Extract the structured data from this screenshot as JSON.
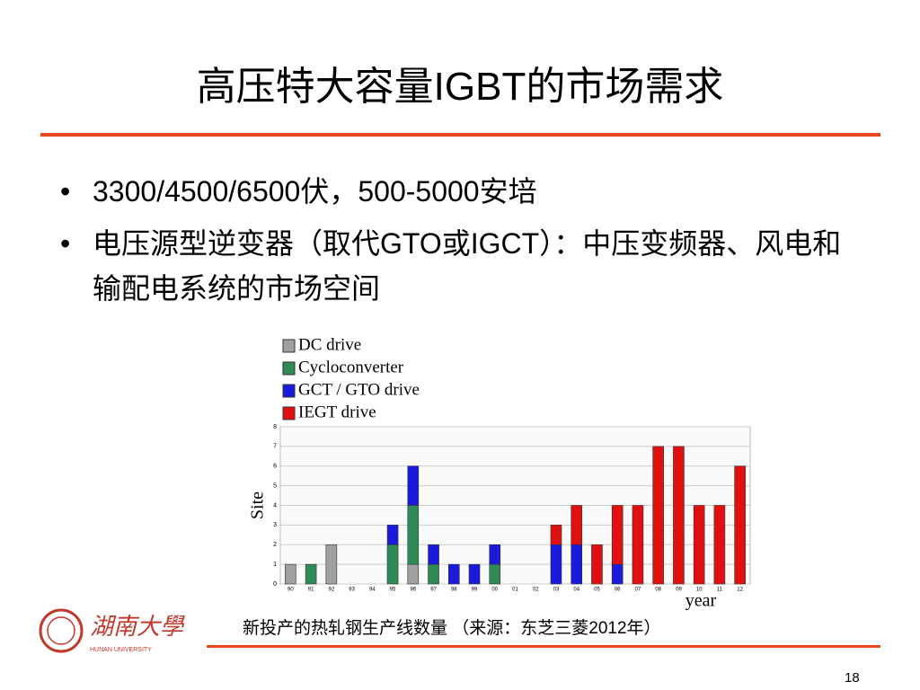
{
  "title": "高压特大容量IGBT的市场需求",
  "bullets": [
    "3300/4500/6500伏，500-5000安培",
    "电压源型逆变器（取代GTO或IGCT）：中压变频器、风电和输配电系统的市场空间"
  ],
  "caption": "新投产的热轧钢生产线数量 （来源：东芝三菱2012年）",
  "logo": {
    "name": "湖南大學",
    "subtitle": "HUNAN UNIVERSITY"
  },
  "page_number": "18",
  "chart_data": {
    "type": "stacked-bar",
    "y_label": "Site",
    "x_label": "year",
    "categories": [
      "90",
      "91",
      "92",
      "93",
      "94",
      "95",
      "96",
      "97",
      "98",
      "99",
      "00",
      "01",
      "02",
      "03",
      "04",
      "05",
      "06",
      "07",
      "08",
      "09",
      "10",
      "11",
      "12"
    ],
    "ylim": [
      0,
      8
    ],
    "yticks": [
      0,
      1,
      2,
      3,
      4,
      5,
      6,
      7,
      8
    ],
    "grid": true,
    "series": [
      {
        "name": "DC drive",
        "color": "#a0a0a0",
        "values": [
          1,
          0,
          2,
          0,
          0,
          0,
          1,
          0,
          0,
          0,
          0,
          0,
          0,
          0,
          0,
          0,
          0,
          0,
          0,
          0,
          0,
          0,
          0
        ]
      },
      {
        "name": "Cycloconverter",
        "color": "#2e8b57",
        "values": [
          0,
          1,
          0,
          0,
          0,
          2,
          3,
          1,
          0,
          0,
          1,
          0,
          0,
          0,
          0,
          0,
          0,
          0,
          0,
          0,
          0,
          0,
          0
        ]
      },
      {
        "name": "GCT / GTO drive",
        "color": "#1a1adc",
        "values": [
          0,
          0,
          0,
          0,
          0,
          1,
          2,
          1,
          1,
          1,
          1,
          0,
          0,
          2,
          2,
          0,
          1,
          0,
          0,
          0,
          0,
          0,
          0
        ]
      },
      {
        "name": "IEGT drive",
        "color": "#e01010",
        "values": [
          0,
          0,
          0,
          0,
          0,
          0,
          0,
          0,
          0,
          0,
          0,
          0,
          0,
          1,
          2,
          2,
          3,
          4,
          7,
          7,
          4,
          4,
          6
        ]
      }
    ]
  }
}
